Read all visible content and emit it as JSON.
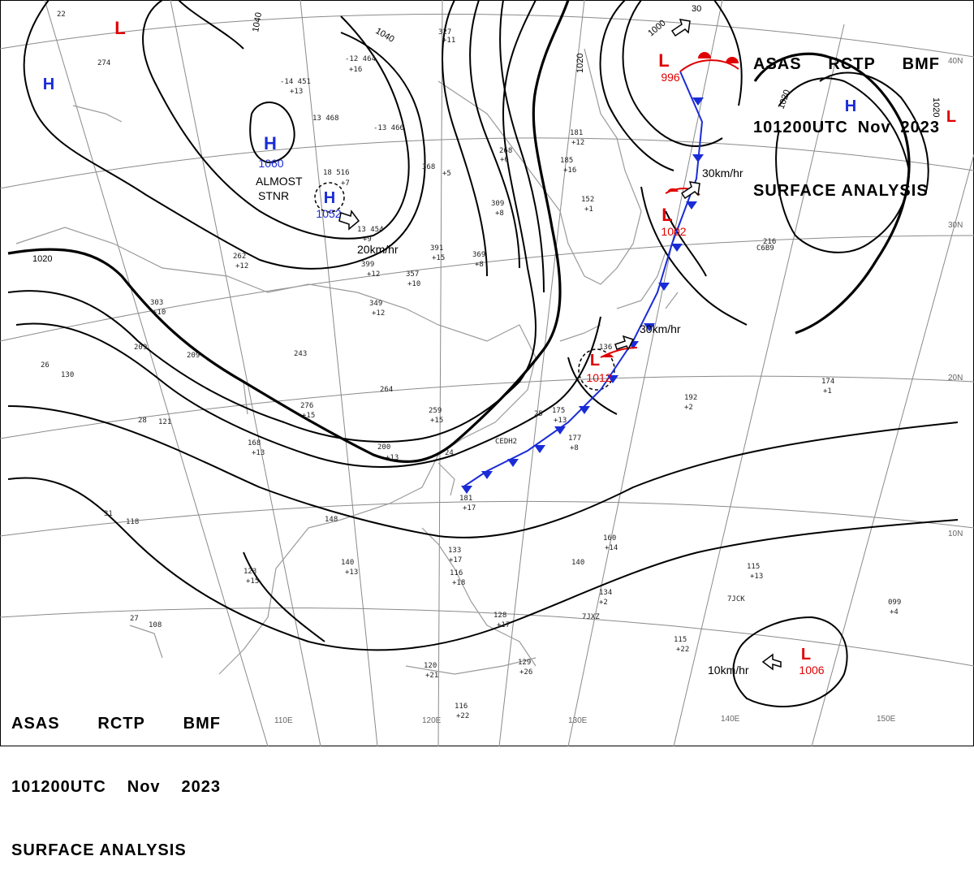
{
  "header": {
    "line1": [
      "ASAS",
      "RCTP",
      "BMF"
    ],
    "line2": [
      "101200UTC",
      "Nov",
      "2023"
    ],
    "line3": "SURFACE ANALYSIS"
  },
  "colors": {
    "high": "#1a2cd6",
    "low": "#e00000",
    "cold_front": "#1a2cd6",
    "warm_front": "#e00000",
    "isobar": "#000000",
    "grid": "#888888",
    "coast": "#9a9a9a"
  },
  "grid_labels": {
    "lon": [
      "110E",
      "120E",
      "130E",
      "140E",
      "150E"
    ],
    "lat": [
      "40N",
      "30N",
      "20N",
      "10N"
    ]
  },
  "isobar_labels": [
    "1040",
    "1040",
    "1020",
    "1020",
    "1020",
    "1020",
    "1000",
    "30"
  ],
  "pressure_centers": [
    {
      "type": "H",
      "value": "1060",
      "name": "high-1060"
    },
    {
      "type": "H",
      "value": "1052",
      "name": "high-1052"
    },
    {
      "type": "H",
      "value": "",
      "name": "high-west"
    },
    {
      "type": "H",
      "value": "",
      "name": "high-northeast"
    },
    {
      "type": "L",
      "value": "",
      "name": "low-north"
    },
    {
      "type": "L",
      "value": "",
      "name": "low-east"
    },
    {
      "type": "L",
      "value": "996",
      "name": "low-996"
    },
    {
      "type": "L",
      "value": "1002",
      "name": "low-1002"
    },
    {
      "type": "L",
      "value": "1012",
      "name": "low-1012"
    },
    {
      "type": "L",
      "value": "1006",
      "name": "low-1006"
    }
  ],
  "annotations": {
    "almost_stnr_1": "ALMOST",
    "almost_stnr_2": "STNR",
    "motion": [
      "20km/hr",
      "30km/hr",
      "30km/hr",
      "10km/hr"
    ]
  },
  "stations": [
    "274",
    "-12 464",
    "+16",
    "-14 451",
    "+13",
    "13 468",
    "-13 466",
    "368",
    "+5",
    "18 516",
    "+7",
    "13 454",
    "+9",
    "399",
    "+12",
    "391",
    "+15",
    "369",
    "+8",
    "357",
    "+10",
    "349",
    "+12",
    "303",
    "+10",
    "262",
    "+12",
    "209",
    "209",
    "243",
    "264",
    "276",
    "+15",
    "259",
    "+15",
    "200",
    "+13",
    "168",
    "+13",
    "130",
    "26",
    "28",
    "121",
    "118",
    "31",
    "148",
    "140",
    "+13",
    "123",
    "+15",
    "108",
    "27",
    "327",
    "+11",
    "268",
    "+6",
    "185",
    "+16",
    "181",
    "+12",
    "152",
    "+1",
    "136",
    "309",
    "+8",
    "174",
    "+1",
    "192",
    "+2",
    "216",
    "177",
    "+8",
    "175",
    "+13",
    "181",
    "+17",
    "160",
    "+14",
    "134",
    "+2",
    "133",
    "+17",
    "116",
    "+18",
    "128",
    "+17",
    "129",
    "+26",
    "116",
    "+22",
    "120",
    "+21",
    "115",
    "+22",
    "099",
    "+4",
    "115",
    "+13",
    "140",
    "7JCK",
    "7JXZ",
    "C6B9",
    "CEDH2",
    "25",
    "24",
    "22"
  ]
}
